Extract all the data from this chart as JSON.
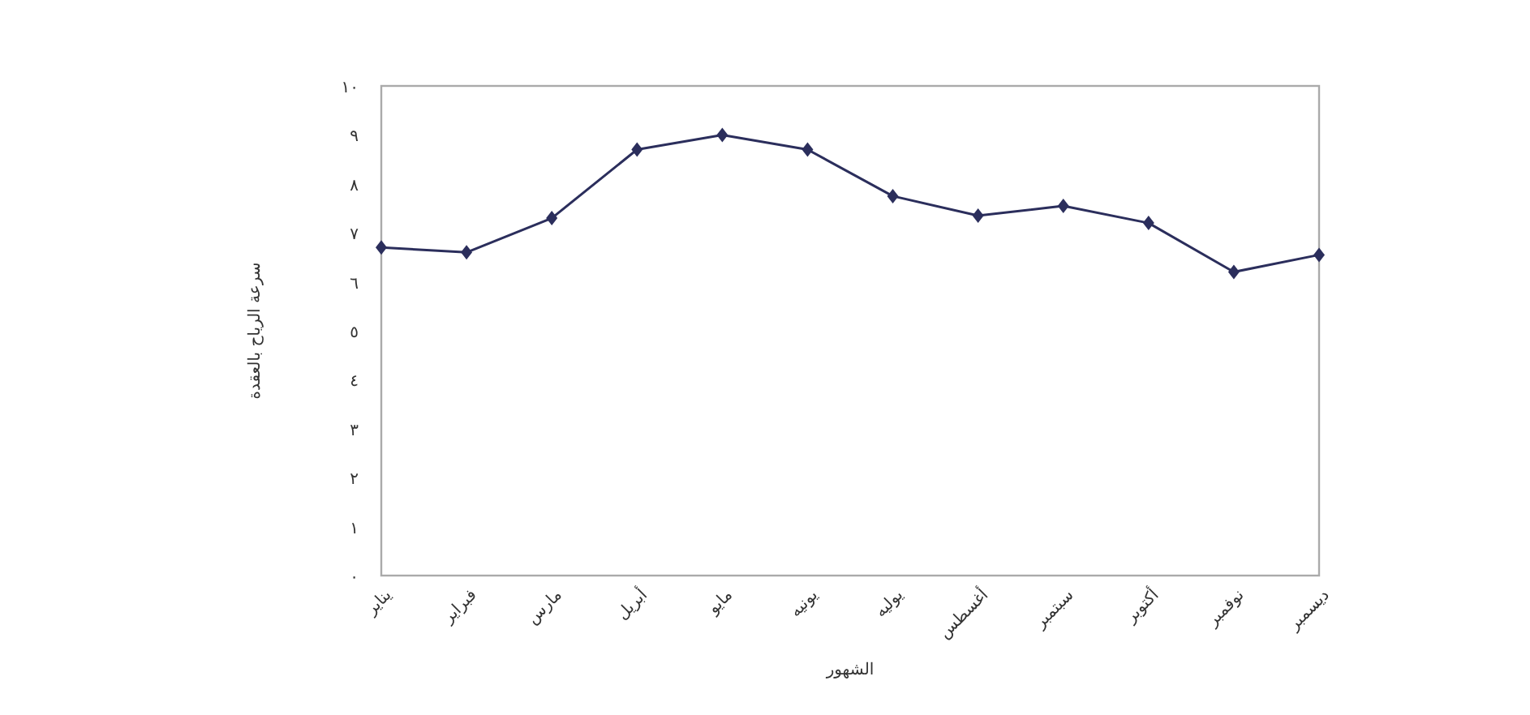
{
  "chart_data": {
    "type": "line",
    "xlabel": "الشهور",
    "ylabel": "سرعة الرياح بالعقدة",
    "categories": [
      "يناير",
      "فبراير",
      "مارس",
      "أبريل",
      "مايو",
      "يونيه",
      "يوليه",
      "أغسطس",
      "سبتمبر",
      "أكتوبر",
      "نوفمبر",
      "ديسمبر"
    ],
    "values": [
      6.7,
      6.6,
      7.3,
      8.7,
      9.0,
      8.7,
      7.75,
      7.35,
      7.55,
      7.2,
      6.2,
      6.55
    ],
    "color": "#2b2e5c",
    "marker": "diamond",
    "line_style": "solid",
    "ylim": [
      0,
      10
    ],
    "yticks": [
      {
        "value": 0,
        "label": "٠"
      },
      {
        "value": 1,
        "label": "١"
      },
      {
        "value": 2,
        "label": "٢"
      },
      {
        "value": 3,
        "label": "٣"
      },
      {
        "value": 4,
        "label": "٤"
      },
      {
        "value": 5,
        "label": "٥"
      },
      {
        "value": 6,
        "label": "٦"
      },
      {
        "value": 7,
        "label": "٧"
      },
      {
        "value": 8,
        "label": "٨"
      },
      {
        "value": 9,
        "label": "٩"
      },
      {
        "value": 10,
        "label": "١٠"
      }
    ]
  }
}
